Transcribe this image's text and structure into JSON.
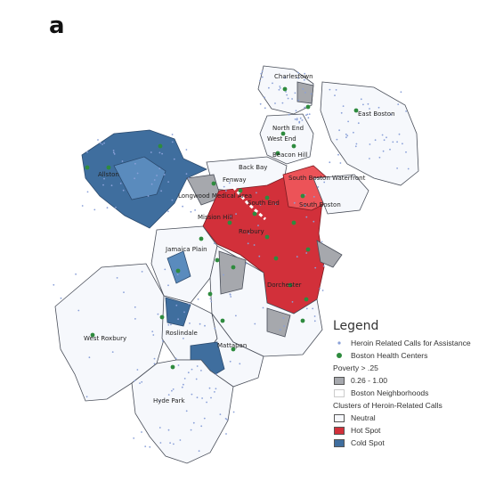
{
  "panel_letter": "a",
  "colors": {
    "hot_spot": "#d2303a",
    "cold_spot": "#3f6e9e",
    "poverty": "#a6a8ad",
    "neutral": "#f6f8fc",
    "health_center": "#2e8b3e",
    "call_point": "#8aa0d8"
  },
  "neighborhood_labels": [
    "Charlestown",
    "East Boston",
    "Allston",
    "North End",
    "West End",
    "Back Bay",
    "Beacon Hill",
    "Fenway",
    "South Boston Waterfront",
    "Longwood Medical Area",
    "South End",
    "South Boston",
    "Mission Hill",
    "Roxbury",
    "Jamaica Plain",
    "Dorchester",
    "Roslindale",
    "West Roxbury",
    "Mattapan",
    "Hyde Park"
  ],
  "legend": {
    "title": "Legend",
    "items": [
      {
        "label": "Heroin Related Calls for Assistance",
        "symbol": "call-point-icon"
      },
      {
        "label": "Boston Health Centers",
        "symbol": "health-center-icon"
      }
    ],
    "poverty_heading": "Poverty > .25",
    "poverty_range": "0.26 - 1.00",
    "neighborhoods_label": "Boston Neighborhoods",
    "clusters_heading": "Clusters of Heroin-Related Calls",
    "clusters": [
      {
        "label": "Neutral",
        "color": "#f6f8fc"
      },
      {
        "label": "Hot Spot",
        "color": "#d2303a"
      },
      {
        "label": "Cold Spot",
        "color": "#3f6e9e"
      }
    ]
  }
}
